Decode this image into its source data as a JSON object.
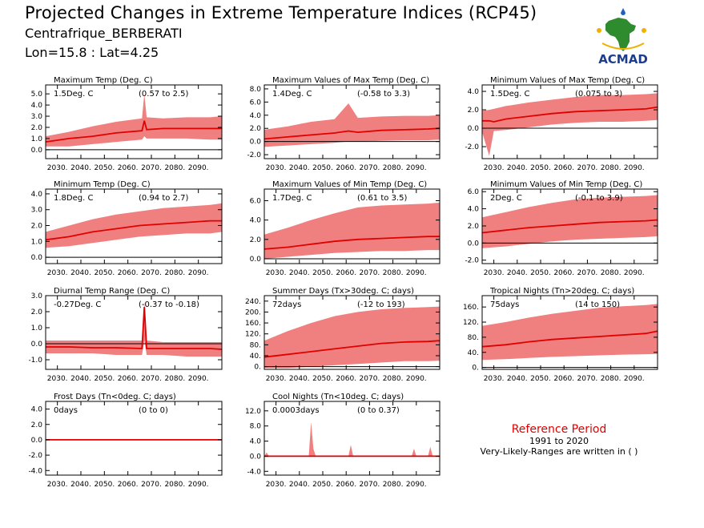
{
  "header": {
    "title": "Projected Changes in Extreme Temperature Indices (RCP45)",
    "subtitle1": "Centrafrique_BERBERATI",
    "subtitle2": "Lon=15.8 : Lat=4.25",
    "logo_text": "ACMAD"
  },
  "reference": {
    "title": "Reference Period",
    "years": "1991 to 2020",
    "note": "Very-Likely-Ranges are written in ( )"
  },
  "colors": {
    "band": "#f08080",
    "line": "#e00000",
    "zero": "#000000",
    "logo_africa": "#2e8b2e",
    "logo_text": "#1e3c8c"
  },
  "chart_data": [
    {
      "type": "area",
      "title": "Maximum Temp (Deg. C)",
      "summary": "1.5Deg. C",
      "range": "(0.57 to 2.5)",
      "xlabels": [
        "2030.",
        "2040.",
        "2050.",
        "2060.",
        "2070.",
        "2080.",
        "2090."
      ],
      "xlim": [
        2025,
        2100
      ],
      "yticks": [
        "0.0",
        "1.0",
        "2.0",
        "3.0",
        "4.0",
        "5.0"
      ],
      "yvals": [
        0,
        1,
        2,
        3,
        4,
        5
      ],
      "ylim": [
        -0.8,
        5.8
      ],
      "series": {
        "x": [
          2025,
          2035,
          2045,
          2055,
          2066,
          2067,
          2068,
          2075,
          2085,
          2095,
          2100
        ],
        "median": [
          0.7,
          1.0,
          1.2,
          1.5,
          1.7,
          2.6,
          1.8,
          1.9,
          1.9,
          1.9,
          1.9
        ],
        "low": [
          0.3,
          0.3,
          0.5,
          0.7,
          0.9,
          1.2,
          1.0,
          1.0,
          1.0,
          0.9,
          0.9
        ],
        "high": [
          1.2,
          1.6,
          2.1,
          2.5,
          2.8,
          5.0,
          2.9,
          2.8,
          2.9,
          2.9,
          3.0
        ]
      }
    },
    {
      "type": "area",
      "title": "Maximum Values of Max Temp (Deg. C)",
      "summary": "1.4Deg. C",
      "range": "(-0.58 to 3.3)",
      "xlabels": [
        "2030.",
        "2040.",
        "2050.",
        "2060.",
        "2070.",
        "2080.",
        "2090."
      ],
      "xlim": [
        2025,
        2100
      ],
      "yticks": [
        "-2.0",
        "0.0",
        "2.0",
        "4.0",
        "6.0",
        "8.0"
      ],
      "yvals": [
        -2,
        0,
        2,
        4,
        6,
        8
      ],
      "ylim": [
        -2.6,
        8.6
      ],
      "series": {
        "x": [
          2025,
          2035,
          2045,
          2055,
          2061,
          2065,
          2075,
          2085,
          2095,
          2100
        ],
        "median": [
          0.4,
          0.7,
          1.0,
          1.3,
          1.6,
          1.4,
          1.7,
          1.8,
          1.9,
          2.0
        ],
        "low": [
          -0.8,
          -0.6,
          -0.4,
          -0.2,
          0.0,
          0.0,
          0.1,
          0.2,
          0.2,
          0.3
        ],
        "high": [
          1.8,
          2.3,
          3.0,
          3.4,
          5.8,
          3.6,
          3.8,
          3.9,
          3.9,
          4.0
        ]
      }
    },
    {
      "type": "area",
      "title": "Minimum Values of Max Temp (Deg. C)",
      "summary": "1.5Deg. C",
      "range": "(0.075 to 3)",
      "xlabels": [
        "2030.",
        "2040.",
        "2050.",
        "2060.",
        "2070.",
        "2080.",
        "2090."
      ],
      "xlim": [
        2025,
        2100
      ],
      "yticks": [
        "-2.0",
        "0.0",
        "2.0",
        "4.0"
      ],
      "yvals": [
        -2,
        0,
        2,
        4
      ],
      "ylim": [
        -3.3,
        4.7
      ],
      "series": {
        "x": [
          2025,
          2028,
          2030,
          2035,
          2045,
          2055,
          2065,
          2075,
          2085,
          2095,
          2100
        ],
        "median": [
          0.8,
          0.8,
          0.7,
          1.0,
          1.3,
          1.6,
          1.8,
          1.9,
          2.0,
          2.1,
          2.3
        ],
        "low": [
          -0.4,
          -3.0,
          -0.3,
          -0.2,
          0.1,
          0.4,
          0.6,
          0.7,
          0.7,
          0.8,
          0.9
        ],
        "high": [
          1.9,
          2.0,
          2.1,
          2.4,
          2.8,
          3.1,
          3.4,
          3.6,
          3.6,
          3.7,
          3.8
        ]
      }
    },
    {
      "type": "area",
      "title": "Minimum Temp (Deg. C)",
      "summary": "1.8Deg. C",
      "range": "(0.94 to 2.7)",
      "xlabels": [
        "2030.",
        "2040.",
        "2050.",
        "2060.",
        "2070.",
        "2080.",
        "2090."
      ],
      "xlim": [
        2025,
        2100
      ],
      "yticks": [
        "0.0",
        "1.0",
        "2.0",
        "3.0",
        "4.0"
      ],
      "yvals": [
        0,
        1,
        2,
        3,
        4
      ],
      "ylim": [
        -0.4,
        4.3
      ],
      "series": {
        "x": [
          2025,
          2035,
          2045,
          2055,
          2065,
          2075,
          2085,
          2095,
          2100
        ],
        "median": [
          1.1,
          1.3,
          1.6,
          1.8,
          2.0,
          2.1,
          2.2,
          2.3,
          2.3
        ],
        "low": [
          0.6,
          0.7,
          0.9,
          1.1,
          1.3,
          1.4,
          1.5,
          1.5,
          1.6
        ],
        "high": [
          1.6,
          2.0,
          2.4,
          2.7,
          2.9,
          3.1,
          3.2,
          3.3,
          3.4
        ]
      }
    },
    {
      "type": "area",
      "title": "Maximum Values of Min Temp (Deg. C)",
      "summary": "1.7Deg. C",
      "range": "(0.61 to 3.5)",
      "xlabels": [
        "2030.",
        "2040.",
        "2050.",
        "2060.",
        "2070.",
        "2080.",
        "2090."
      ],
      "xlim": [
        2025,
        2100
      ],
      "yticks": [
        "0.0",
        "2.0",
        "4.0",
        "6.0"
      ],
      "yvals": [
        0,
        2,
        4,
        6
      ],
      "ylim": [
        -0.5,
        7.2
      ],
      "series": {
        "x": [
          2025,
          2035,
          2045,
          2055,
          2065,
          2075,
          2085,
          2095,
          2100
        ],
        "median": [
          1.0,
          1.2,
          1.5,
          1.8,
          2.0,
          2.1,
          2.2,
          2.3,
          2.3
        ],
        "low": [
          0.0,
          0.2,
          0.4,
          0.6,
          0.7,
          0.8,
          0.8,
          0.9,
          0.9
        ],
        "high": [
          2.5,
          3.2,
          4.0,
          4.7,
          5.3,
          5.5,
          5.6,
          5.7,
          5.8
        ]
      }
    },
    {
      "type": "area",
      "title": "Minimum Values of Min Temp (Deg. C)",
      "summary": "2Deg. C",
      "range": "(-0.1 to 3.9)",
      "xlabels": [
        "2030.",
        "2040.",
        "2050.",
        "2060.",
        "2070.",
        "2080.",
        "2090."
      ],
      "xlim": [
        2025,
        2100
      ],
      "yticks": [
        "-2.0",
        "0.0",
        "2.0",
        "4.0",
        "6.0"
      ],
      "yvals": [
        -2,
        0,
        2,
        4,
        6
      ],
      "ylim": [
        -2.4,
        6.3
      ],
      "series": {
        "x": [
          2025,
          2035,
          2045,
          2055,
          2065,
          2075,
          2085,
          2095,
          2100
        ],
        "median": [
          1.2,
          1.5,
          1.8,
          2.0,
          2.2,
          2.4,
          2.5,
          2.6,
          2.7
        ],
        "low": [
          -0.6,
          -0.4,
          -0.1,
          0.2,
          0.4,
          0.5,
          0.6,
          0.7,
          0.8
        ],
        "high": [
          3.0,
          3.6,
          4.2,
          4.7,
          5.1,
          5.3,
          5.4,
          5.5,
          5.6
        ]
      }
    },
    {
      "type": "area",
      "title": "Diurnal Temp Range (Deg. C)",
      "summary": "-0.27Deg. C",
      "range": "(-0.37 to -0.18)",
      "xlabels": [
        "2030.",
        "2040.",
        "2050.",
        "2060.",
        "2070.",
        "2080.",
        "2090."
      ],
      "xlim": [
        2025,
        2100
      ],
      "yticks": [
        "-1.0",
        "0.0",
        "1.0",
        "2.0",
        "3.0"
      ],
      "yvals": [
        -1,
        0,
        1,
        2,
        3
      ],
      "ylim": [
        -1.6,
        3.0
      ],
      "series": {
        "x": [
          2025,
          2035,
          2045,
          2055,
          2066,
          2067,
          2068,
          2075,
          2085,
          2095,
          2100
        ],
        "median": [
          -0.2,
          -0.2,
          -0.25,
          -0.25,
          -0.3,
          2.3,
          -0.3,
          -0.3,
          -0.3,
          -0.3,
          -0.35
        ],
        "low": [
          -0.6,
          -0.6,
          -0.6,
          -0.7,
          -0.7,
          0.2,
          -0.7,
          -0.7,
          -0.8,
          -0.8,
          -0.8
        ],
        "high": [
          0.2,
          0.2,
          0.2,
          0.2,
          0.2,
          2.6,
          0.2,
          0.1,
          0.1,
          0.1,
          0.1
        ]
      }
    },
    {
      "type": "area",
      "title": "Summer Days (Tx>30deg. C; days)",
      "summary": "72days",
      "range": "(-12 to 193)",
      "xlabels": [
        "2030.",
        "2040.",
        "2050.",
        "2060.",
        "2070.",
        "2080.",
        "2090."
      ],
      "xlim": [
        2025,
        2100
      ],
      "yticks": [
        "0.",
        "40.",
        "80.",
        "120.",
        "160.",
        "200.",
        "240."
      ],
      "yvals": [
        0,
        40,
        80,
        120,
        160,
        200,
        240
      ],
      "ylim": [
        -10,
        260
      ],
      "series": {
        "x": [
          2025,
          2035,
          2045,
          2055,
          2065,
          2075,
          2085,
          2095,
          2100
        ],
        "median": [
          35,
          45,
          55,
          65,
          75,
          85,
          90,
          92,
          95
        ],
        "low": [
          -5,
          -5,
          0,
          5,
          10,
          15,
          20,
          20,
          22
        ],
        "high": [
          95,
          130,
          160,
          185,
          200,
          210,
          215,
          218,
          220
        ]
      }
    },
    {
      "type": "area",
      "title": "Tropical Nights (Tn>20deg. C; days)",
      "summary": "75days",
      "range": "(14 to 150)",
      "xlabels": [
        "2030.",
        "2040.",
        "2050.",
        "2060.",
        "2070.",
        "2080.",
        "2090."
      ],
      "xlim": [
        2025,
        2100
      ],
      "yticks": [
        "0.",
        "40.",
        "80.",
        "120.",
        "160."
      ],
      "yvals": [
        0,
        40,
        80,
        120,
        160
      ],
      "ylim": [
        -5,
        190
      ],
      "series": {
        "x": [
          2025,
          2035,
          2045,
          2055,
          2065,
          2075,
          2085,
          2095,
          2100
        ],
        "median": [
          55,
          60,
          68,
          74,
          78,
          82,
          86,
          90,
          96
        ],
        "low": [
          20,
          22,
          25,
          28,
          30,
          32,
          34,
          35,
          36
        ],
        "high": [
          110,
          120,
          132,
          142,
          150,
          158,
          162,
          165,
          168
        ]
      }
    },
    {
      "type": "area",
      "title": "Frost Days (Tn<0deg. C; days)",
      "summary": "0days",
      "range": "(0 to 0)",
      "xlabels": [
        "2030.",
        "2040.",
        "2050.",
        "2060.",
        "2070.",
        "2080.",
        "2090."
      ],
      "xlim": [
        2025,
        2100
      ],
      "yticks": [
        "-4.0",
        "-2.0",
        "0.0",
        "2.0",
        "4.0"
      ],
      "yvals": [
        -4,
        -2,
        0,
        2,
        4
      ],
      "ylim": [
        -4.6,
        5.0
      ],
      "series": {
        "x": [
          2025,
          2100
        ],
        "median": [
          0,
          0
        ],
        "low": [
          0,
          0
        ],
        "high": [
          0,
          0
        ]
      }
    },
    {
      "type": "area",
      "title": "Cool Nights (Tn<10deg. C; days)",
      "summary": "0.0003days",
      "range": "(0 to 0.37)",
      "xlabels": [
        "2030.",
        "2040.",
        "2050.",
        "2060.",
        "2070.",
        "2080.",
        "2090."
      ],
      "xlim": [
        2025,
        2100
      ],
      "yticks": [
        "-4.0",
        "0.0",
        "4.0",
        "8.0",
        "12.0"
      ],
      "yvals": [
        -4,
        0,
        4,
        8,
        12
      ],
      "ylim": [
        -5.0,
        14.5
      ],
      "series": {
        "x": [
          2025,
          2026,
          2027,
          2028,
          2044,
          2045,
          2046,
          2047,
          2048,
          2061,
          2062,
          2063,
          2088,
          2089,
          2090,
          2095,
          2096,
          2097,
          2100
        ],
        "median": [
          0,
          0,
          0,
          0,
          0,
          0,
          0,
          0,
          0,
          0,
          0,
          0,
          0,
          0,
          0,
          0,
          0,
          0,
          0
        ],
        "low": [
          0,
          0,
          0,
          0,
          0,
          0,
          0,
          0,
          0,
          0,
          0,
          0,
          0,
          0,
          0,
          0,
          0,
          0,
          0
        ],
        "high": [
          0,
          1.0,
          0,
          0,
          0,
          9.0,
          2.0,
          0,
          0,
          0,
          3.0,
          0,
          0,
          2.0,
          0,
          0,
          2.5,
          0,
          0
        ]
      }
    }
  ]
}
